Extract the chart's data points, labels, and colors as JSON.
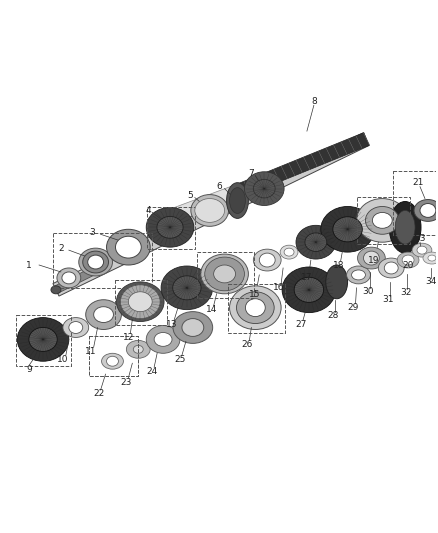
{
  "background_color": "#ffffff",
  "fig_width": 4.38,
  "fig_height": 5.33,
  "dpi": 100,
  "label_fontsize": 6.5,
  "label_color": "#222222",
  "part_color_dark": "#2a2a2a",
  "part_color_mid": "#888888",
  "part_color_light": "#cccccc",
  "part_color_white": "#ffffff",
  "line_color": "#333333",
  "box_color": "#555555",
  "shaft_top_color": "#bbbbbb",
  "shaft_spline_color": "#333333"
}
